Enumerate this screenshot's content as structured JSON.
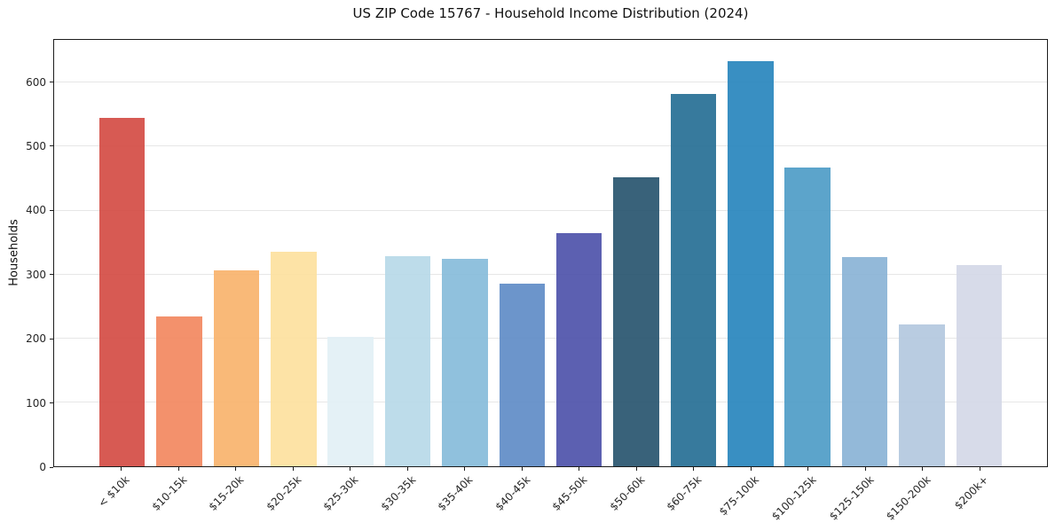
{
  "chart_data": {
    "type": "bar",
    "title": "US ZIP Code 15767 - Household Income Distribution (2024)",
    "xlabel": "",
    "ylabel": "Households",
    "categories": [
      "< $10k",
      "$10-15k",
      "$15-20k",
      "$20-25k",
      "$25-30k",
      "$30-35k",
      "$35-40k",
      "$40-45k",
      "$45-50k",
      "$50-60k",
      "$60-75k",
      "$75-100k",
      "$100-125k",
      "$125-150k",
      "$150-200k",
      "$200k+"
    ],
    "values": [
      545,
      235,
      307,
      335,
      203,
      329,
      325,
      286,
      365,
      452,
      583,
      634,
      468,
      327,
      222,
      315
    ],
    "bar_colors": [
      "#d34840",
      "#f2855c",
      "#f8b169",
      "#fde09c",
      "#e1eff5",
      "#b6d8e8",
      "#84bad9",
      "#5c89c5",
      "#4a4fa9",
      "#24516c",
      "#216c92",
      "#2483bb",
      "#4a9ac5",
      "#87b1d5",
      "#b1c6de",
      "#d3d7e7"
    ],
    "bar_opacity": 0.9,
    "yticks": [
      0,
      100,
      200,
      300,
      400,
      500,
      600
    ],
    "ylim": [
      0,
      667
    ],
    "x_units": {
      "min": -1.19,
      "max": 16.19
    },
    "bar_width_units": 0.8,
    "grid": "horizontal",
    "gridline_color": "#e6e6e6",
    "spine_color": "#1c1c1c",
    "background": "#ffffff",
    "legend": "none"
  }
}
